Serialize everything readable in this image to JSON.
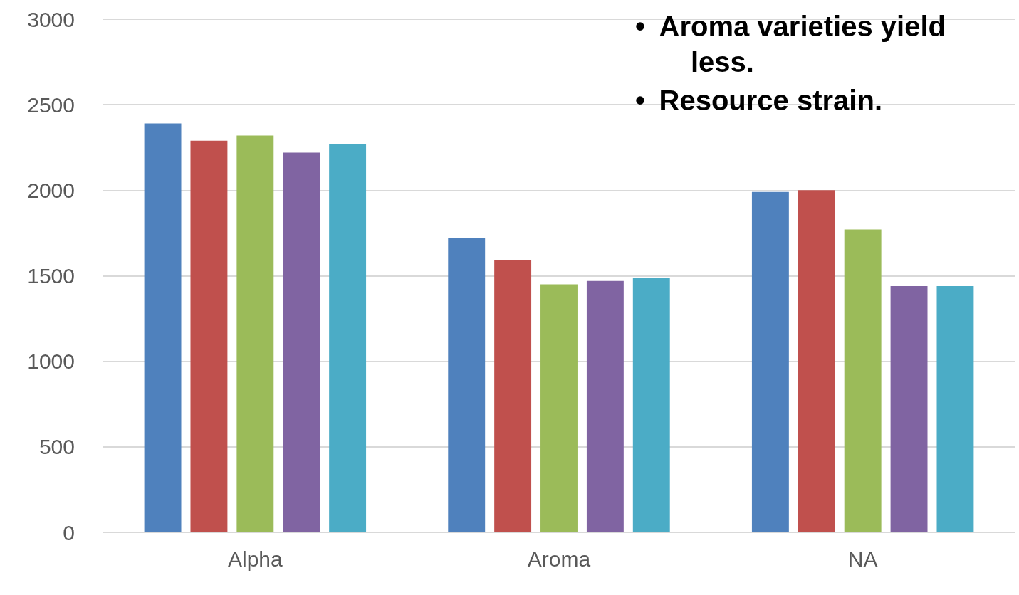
{
  "chart_data": {
    "type": "bar",
    "categories": [
      "Alpha",
      "Aroma",
      "NA"
    ],
    "series": [
      {
        "color": "#4f81bd",
        "values": [
          2390,
          1720,
          1990
        ]
      },
      {
        "color": "#c0504d",
        "values": [
          2290,
          1590,
          2000
        ]
      },
      {
        "color": "#9bbb59",
        "values": [
          2320,
          1450,
          1770
        ]
      },
      {
        "color": "#8064a2",
        "values": [
          2220,
          1470,
          1440
        ]
      },
      {
        "color": "#4bacc6",
        "values": [
          2270,
          1490,
          1440
        ]
      }
    ],
    "ylim": [
      0,
      3000
    ],
    "yticks": [
      0,
      500,
      1000,
      1500,
      2000,
      2500,
      3000
    ],
    "grid": "y",
    "annotations": [
      "•\tAroma varieties yield less.",
      "•\tResource strain."
    ]
  }
}
